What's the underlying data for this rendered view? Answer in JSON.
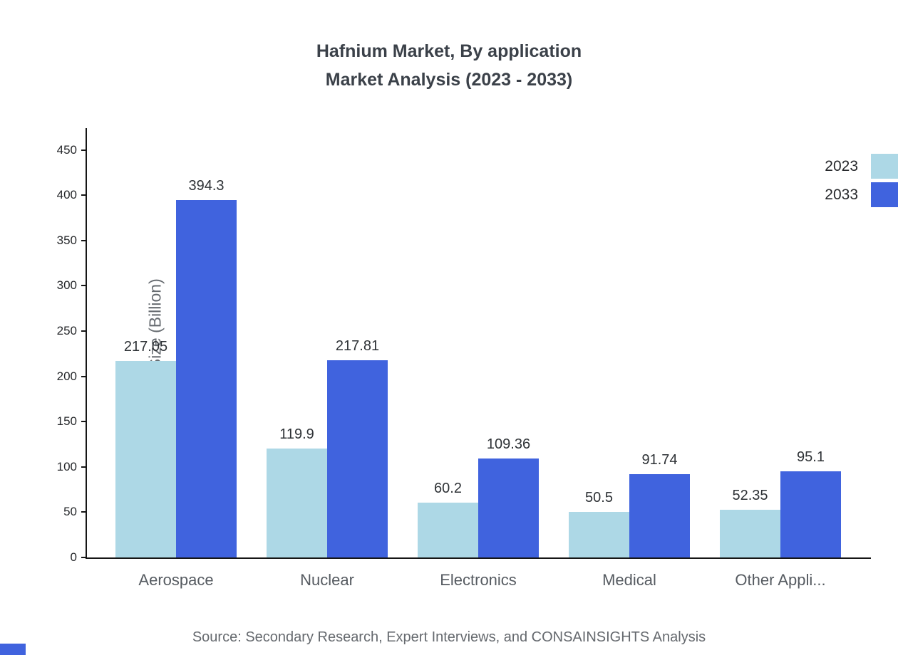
{
  "title": {
    "line1": "Hafnium Market, By application",
    "line2": "Market Analysis (2023 - 2033)"
  },
  "source": "Source: Secondary Research, Expert Interviews, and CONSAINSIGHTS Analysis",
  "colors": {
    "series_2023": "#ADD8E6",
    "series_2033": "#4063DE",
    "axis": "#161616",
    "title_text": "#3b4149",
    "muted_text": "#65696e"
  },
  "chart_data": {
    "type": "bar",
    "title": "Hafnium Market, By application — Market Analysis (2023 - 2033)",
    "categories": [
      "Aerospace",
      "Nuclear",
      "Electronics",
      "Medical",
      "Other Appli..."
    ],
    "series": [
      {
        "name": "2023",
        "color": "#ADD8E6",
        "values": [
          217.05,
          119.9,
          60.2,
          50.5,
          52.35
        ]
      },
      {
        "name": "2033",
        "color": "#4063DE",
        "values": [
          394.3,
          217.81,
          109.36,
          91.74,
          95.1
        ]
      }
    ],
    "xlabel": "",
    "ylabel": "Market Size (Billion)",
    "ylim": [
      0,
      474
    ],
    "yticks": [
      0,
      50,
      100,
      150,
      200,
      250,
      300,
      350,
      400,
      450
    ],
    "grid": false,
    "legend_position": "top-right",
    "value_labels": true
  }
}
